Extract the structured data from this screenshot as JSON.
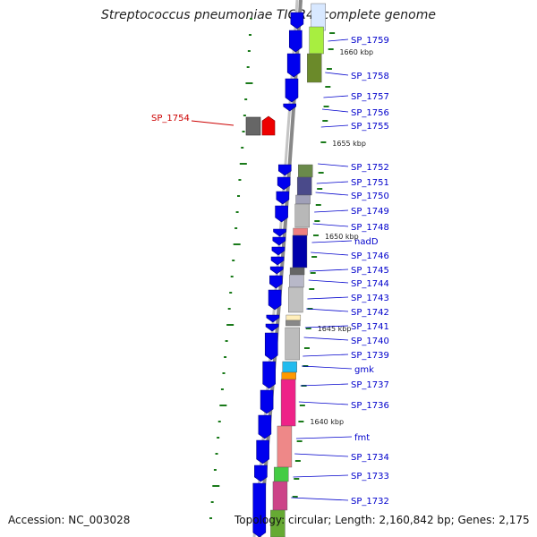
{
  "title": "Streptococcus pneumoniae TIGR4, complete genome",
  "footer": {
    "accession": "Accession: NC_003028",
    "topology": "Topology: circular; Length: 2,160,842 bp; Genes: 2,175"
  },
  "colors": {
    "gene_forward": "#0000ee",
    "highlight_gene": "#ee0000",
    "label_line": "#0000cc",
    "highlight_label": "#cc0000",
    "backbone": "#888888",
    "tick": "#1a7a1a"
  },
  "position_labels": [
    "1660 kbp",
    "1655 kbp",
    "1650 kbp",
    "1645 kbp",
    "1640 kbp"
  ],
  "gene_labels": [
    "SP_1759",
    "SP_1758",
    "SP_1757",
    "SP_1756",
    "SP_1755",
    "SP_1752",
    "SP_1751",
    "SP_1750",
    "SP_1749",
    "SP_1748",
    "nadD",
    "SP_1746",
    "SP_1745",
    "SP_1744",
    "SP_1743",
    "SP_1742",
    "SP_1741",
    "SP_1740",
    "SP_1739",
    "gmk",
    "SP_1737",
    "SP_1736",
    "fmt",
    "SP_1734",
    "SP_1733",
    "SP_1732"
  ],
  "highlight_label": "SP_1754"
}
